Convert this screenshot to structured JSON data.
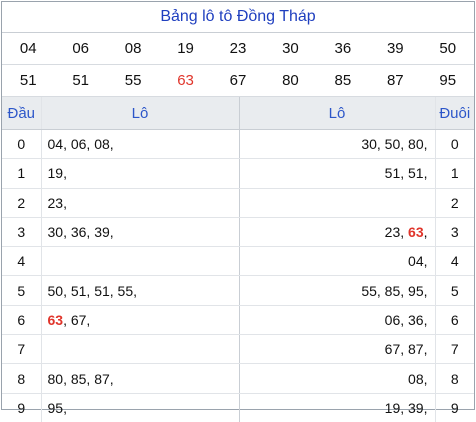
{
  "title": "Bảng lô tô Đồng Tháp",
  "numbers_row1": [
    "04",
    "06",
    "08",
    "19",
    "23",
    "30",
    "36",
    "39",
    "50"
  ],
  "numbers_row2": [
    "51",
    "51",
    "55",
    "63",
    "67",
    "80",
    "85",
    "87",
    "95"
  ],
  "highlight_number": "63",
  "accent_color": "#e0352b",
  "header_color": "#2c56c9",
  "headers": {
    "dau": "Đầu",
    "lo_left": "Lô",
    "lo_right": "Lô",
    "duoi": "Đuôi"
  },
  "rows": [
    {
      "dau": "0",
      "lo_left": "04, 06, 08,",
      "lo_right": "30, 50, 80,",
      "duoi": "0"
    },
    {
      "dau": "1",
      "lo_left": "19,",
      "lo_right": "51, 51,",
      "duoi": "1"
    },
    {
      "dau": "2",
      "lo_left": "23,",
      "lo_right": "",
      "duoi": "2"
    },
    {
      "dau": "3",
      "lo_left": "30, 36, 39,",
      "lo_right": "23, 63,",
      "duoi": "3"
    },
    {
      "dau": "4",
      "lo_left": "",
      "lo_right": "04,",
      "duoi": "4"
    },
    {
      "dau": "5",
      "lo_left": "50, 51, 51, 55,",
      "lo_right": "55, 85, 95,",
      "duoi": "5"
    },
    {
      "dau": "6",
      "lo_left": "63, 67,",
      "lo_right": "06, 36,",
      "duoi": "6"
    },
    {
      "dau": "7",
      "lo_left": "",
      "lo_right": "67, 87,",
      "duoi": "7"
    },
    {
      "dau": "8",
      "lo_left": "80, 85, 87,",
      "lo_right": "08,",
      "duoi": "8"
    },
    {
      "dau": "9",
      "lo_left": "95,",
      "lo_right": "19, 39,",
      "duoi": "9"
    }
  ]
}
